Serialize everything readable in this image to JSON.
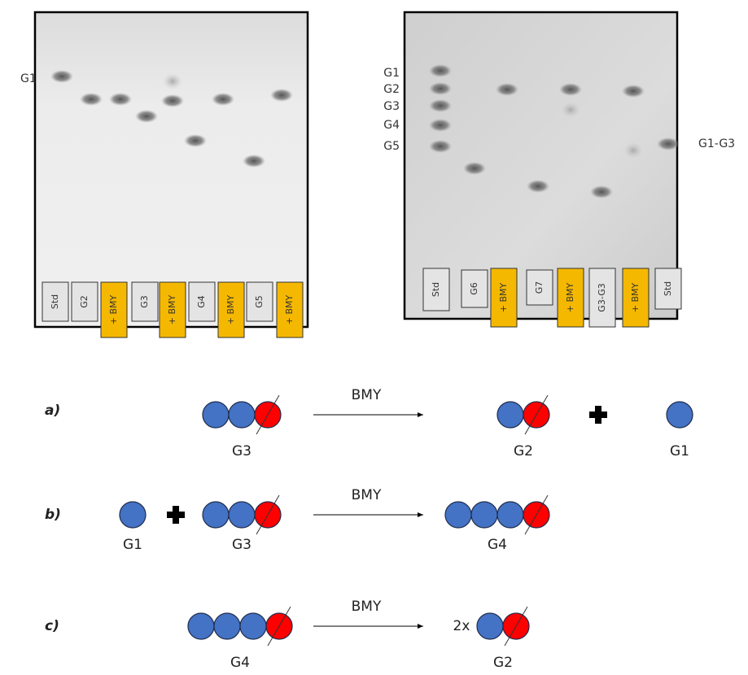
{
  "left_plate": {
    "side_labels": [
      "G1"
    ],
    "lanes": [
      "Std",
      "G2",
      "+ BMY",
      "G3",
      "+ BMY",
      "G4",
      "+ BMY",
      "G5",
      "+ BMY"
    ]
  },
  "right_plate": {
    "left_labels": [
      "G1",
      "G2",
      "G3",
      "G4",
      "G5"
    ],
    "right_labels": [
      "G1-G3"
    ],
    "lanes": [
      "Std",
      "G6",
      "+ BMY",
      "G7",
      "+ BMY",
      "G3-G3",
      "+ BMY",
      "Std"
    ]
  },
  "reactions": [
    {
      "label": "a)",
      "enzyme": "BMY",
      "reactants": [
        "G3"
      ],
      "products": [
        "G2",
        "G1"
      ]
    },
    {
      "label": "b)",
      "enzyme": "BMY",
      "reactants": [
        "G1",
        "G3"
      ],
      "products": [
        "G4"
      ]
    },
    {
      "label": "c)",
      "enzyme": "BMY",
      "reactants": [
        "G4"
      ],
      "coefficient": "2x",
      "products": [
        "G2"
      ]
    }
  ]
}
